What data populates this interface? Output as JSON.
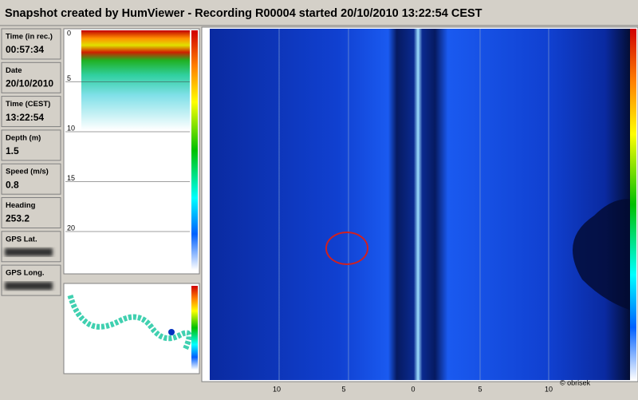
{
  "header": {
    "title": "Snapshot created by HumViewer - Recording R00004 started 20/10/2010 13:22:54 CEST"
  },
  "info_panels": [
    {
      "label": "Time (in rec.)",
      "value": "00:57:34"
    },
    {
      "label": "Date",
      "value": "20/10/2010"
    },
    {
      "label": "Time (CEST)",
      "value": "13:22:54"
    },
    {
      "label": "Depth (m)",
      "value": "1.5"
    },
    {
      "label": "Speed (m/s)",
      "value": "0.8"
    },
    {
      "label": "Heading",
      "value": "253.2"
    },
    {
      "label": "GPS Lat."
    },
    {
      "label": "GPS Long."
    }
  ],
  "depth_scale": {
    "ticks": [
      0,
      5,
      10,
      15,
      20
    ]
  },
  "side_scan": {
    "axis_labels": [
      "10",
      "5",
      "0",
      "5",
      "10"
    ]
  },
  "watermark": "© obrisek"
}
